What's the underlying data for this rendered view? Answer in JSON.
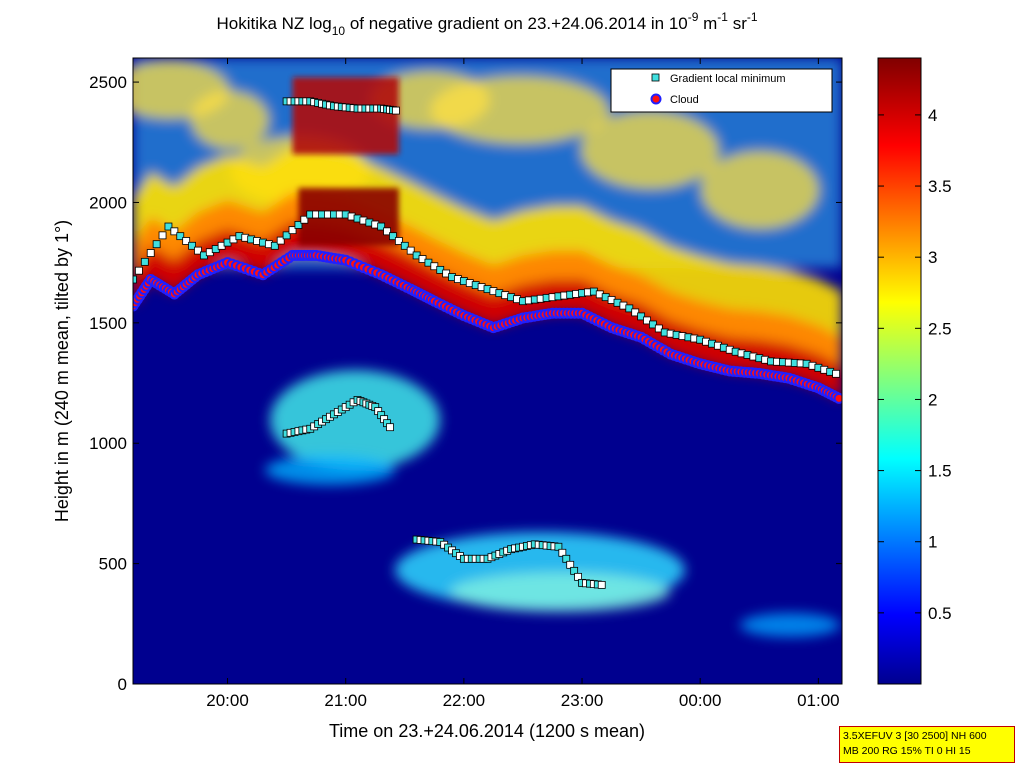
{
  "chart_data": {
    "type": "heatmap",
    "title": {
      "prefix": "Hokitika NZ log",
      "log_sub": "10",
      "middle": " of negative gradient on 23.+24.06.2014 in 10",
      "sup1": "-9",
      "unit1": " m",
      "sup2": "-1",
      "unit2": " sr",
      "sup3": "-1"
    },
    "xlabel": "Time on 23.+24.06.2014 (1200 s mean)",
    "ylabel": "Height in m (240 m mean, tilted by 1°)",
    "x_ticks": [
      "20:00",
      "21:00",
      "22:00",
      "23:00",
      "00:00",
      "01:00"
    ],
    "x_tick_hours": [
      20,
      21,
      22,
      23,
      24,
      25
    ],
    "xlim_hours": [
      19.2,
      25.2
    ],
    "y_ticks": [
      0,
      500,
      1000,
      1500,
      2000,
      2500
    ],
    "ylim": [
      0,
      2600
    ],
    "colorbar": {
      "ticks": [
        0.5,
        1,
        1.5,
        2,
        2.5,
        3,
        3.5,
        4
      ],
      "labels": [
        "0.5",
        "1",
        "1.5",
        "2",
        "2.5",
        "3",
        "3.5",
        "4"
      ],
      "range": [
        0,
        4.4
      ],
      "colormap": "jet"
    },
    "legend": {
      "placement": "top-right",
      "entries": [
        {
          "label": "Gradient local minimum",
          "marker": "square",
          "color": "#40e0e0"
        },
        {
          "label": "Cloud",
          "marker": "circle",
          "color": "#ff1010"
        }
      ]
    },
    "cloud_base": {
      "x_hours": [
        19.2,
        19.35,
        19.55,
        19.75,
        20.0,
        20.3,
        20.55,
        20.75,
        21.0,
        21.3,
        21.55,
        21.75,
        22.0,
        22.25,
        22.5,
        22.75,
        23.0,
        23.25,
        23.5,
        23.75,
        24.0,
        24.25,
        24.5,
        24.75,
        25.0,
        25.2
      ],
      "height_m": [
        1570,
        1680,
        1620,
        1700,
        1750,
        1700,
        1780,
        1780,
        1760,
        1700,
        1640,
        1590,
        1530,
        1480,
        1520,
        1540,
        1540,
        1480,
        1440,
        1370,
        1330,
        1300,
        1290,
        1270,
        1230,
        1180
      ]
    },
    "gradient_minimum_layers": [
      {
        "x_hours": [
          19.2,
          19.5,
          19.8,
          20.1,
          20.4,
          20.7,
          21.0,
          21.3,
          21.6,
          21.9,
          22.2,
          22.5,
          22.8,
          23.1,
          23.4,
          23.7,
          24.0,
          24.3,
          24.6,
          24.9,
          25.2
        ],
        "height_m": [
          1680,
          1900,
          1780,
          1860,
          1820,
          1950,
          1950,
          1900,
          1780,
          1690,
          1640,
          1590,
          1610,
          1630,
          1560,
          1460,
          1430,
          1380,
          1340,
          1330,
          1280
        ]
      },
      {
        "x_hours": [
          20.5,
          20.7,
          20.9,
          21.1,
          21.3,
          21.45
        ],
        "height_m": [
          2420,
          2420,
          2400,
          2390,
          2390,
          2380
        ]
      },
      {
        "x_hours": [
          20.5,
          20.7,
          20.9,
          21.1,
          21.25,
          21.4
        ],
        "height_m": [
          1040,
          1060,
          1120,
          1180,
          1150,
          1050
        ]
      },
      {
        "x_hours": [
          21.6,
          21.8,
          22.0,
          22.2,
          22.4,
          22.6,
          22.8,
          23.0,
          23.2
        ],
        "height_m": [
          600,
          590,
          520,
          520,
          560,
          580,
          570,
          420,
          410
        ]
      }
    ],
    "info_box": [
      "3.5XEFUV 3 [30 2500] NH 600",
      "MB 200 RG 15% TI 0 HI 15"
    ]
  }
}
